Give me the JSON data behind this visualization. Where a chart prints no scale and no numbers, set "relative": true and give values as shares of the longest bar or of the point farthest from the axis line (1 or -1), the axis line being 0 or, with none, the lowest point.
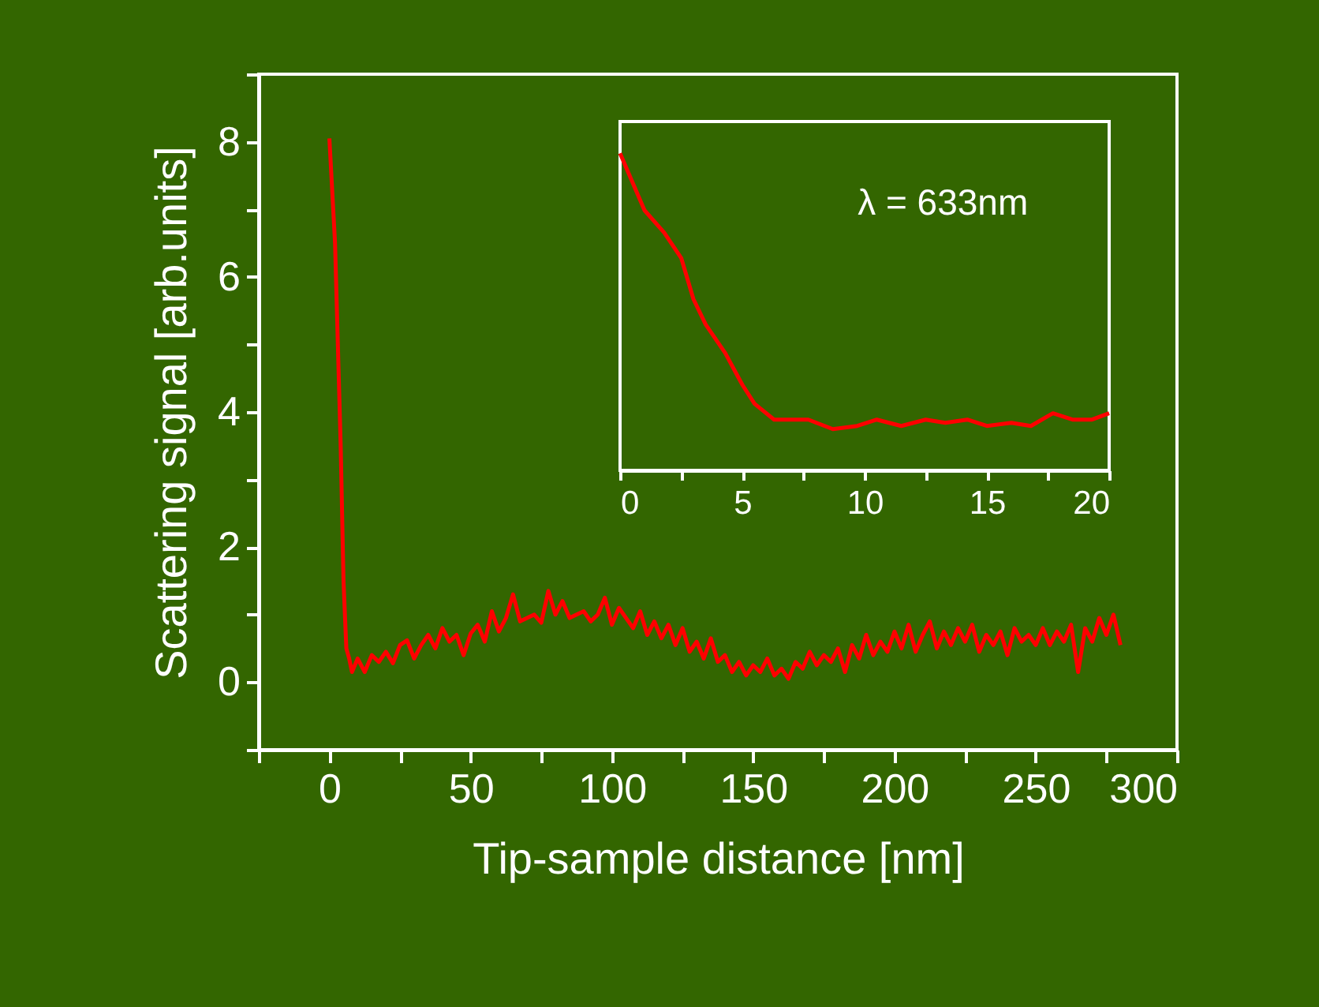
{
  "chart_data": [
    {
      "type": "line",
      "xlabel": "Tip-sample distance [nm]",
      "ylabel": "Scattering signal [arb.units]",
      "xlim": [
        -25,
        300
      ],
      "ylim": [
        -1,
        9
      ],
      "xticks": [
        {
          "value": -25,
          "label": null
        },
        0,
        {
          "value": 25,
          "label": null
        },
        50,
        {
          "value": 75,
          "label": null
        },
        100,
        {
          "value": 125,
          "label": null
        },
        150,
        {
          "value": 175,
          "label": null
        },
        200,
        {
          "value": 225,
          "label": null
        },
        250,
        {
          "value": 275,
          "label": null
        },
        300
      ],
      "yticks": [
        {
          "value": -1,
          "label": null
        },
        0,
        {
          "value": 1,
          "label": null
        },
        2,
        {
          "value": 3,
          "label": null
        },
        4,
        {
          "value": 5,
          "label": null
        },
        6,
        {
          "value": 7,
          "label": null
        },
        8,
        {
          "value": 9,
          "label": null
        }
      ],
      "series": [
        {
          "color": "#ff0000",
          "x": [
            0,
            2,
            4,
            5,
            6,
            7,
            8,
            10,
            12.5,
            15,
            17.5,
            20,
            22.5,
            25,
            27.5,
            30,
            32.5,
            35,
            37.5,
            40,
            42.5,
            45,
            47.5,
            50,
            52.5,
            55,
            57.5,
            60,
            62.5,
            65,
            67.5,
            70,
            72.5,
            75,
            77.5,
            80,
            82.5,
            85,
            87.5,
            90,
            92.5,
            95,
            97.5,
            100,
            102.5,
            105,
            107.5,
            110,
            112.5,
            115,
            117.5,
            120,
            122.5,
            125,
            127.5,
            130,
            132.5,
            135,
            137.5,
            140,
            142.5,
            145,
            147.5,
            150,
            152.5,
            155,
            157.5,
            160,
            162.5,
            165,
            167.5,
            170,
            172.5,
            175,
            177.5,
            180,
            182.5,
            185,
            187.5,
            190,
            192.5,
            195,
            197.5,
            200,
            202.5,
            205,
            207.5,
            210,
            212.5,
            215,
            217.5,
            220,
            222.5,
            225,
            227.5,
            230,
            232.5,
            235,
            237.5,
            240,
            242.5,
            245,
            247.5,
            250,
            252.5,
            255,
            257.5,
            260,
            262.5,
            265,
            267.5,
            270,
            272.5,
            275,
            277.5,
            280
          ],
          "values": [
            8.05,
            6.5,
            3.5,
            1.5,
            0.5,
            0.35,
            0.15,
            0.35,
            0.15,
            0.4,
            0.3,
            0.45,
            0.28,
            0.55,
            0.62,
            0.35,
            0.55,
            0.7,
            0.5,
            0.8,
            0.6,
            0.7,
            0.4,
            0.72,
            0.85,
            0.6,
            1.05,
            0.75,
            0.95,
            1.3,
            0.9,
            0.95,
            1.0,
            0.88,
            1.35,
            1.0,
            1.2,
            0.95,
            1.0,
            1.05,
            0.9,
            1.0,
            1.25,
            0.85,
            1.1,
            0.95,
            0.8,
            1.05,
            0.7,
            0.9,
            0.65,
            0.85,
            0.55,
            0.8,
            0.45,
            0.6,
            0.35,
            0.65,
            0.3,
            0.4,
            0.15,
            0.3,
            0.1,
            0.25,
            0.15,
            0.35,
            0.1,
            0.2,
            0.05,
            0.3,
            0.2,
            0.45,
            0.25,
            0.4,
            0.3,
            0.5,
            0.15,
            0.55,
            0.35,
            0.7,
            0.4,
            0.6,
            0.45,
            0.75,
            0.5,
            0.85,
            0.45,
            0.7,
            0.9,
            0.5,
            0.75,
            0.55,
            0.8,
            0.6,
            0.85,
            0.45,
            0.7,
            0.55,
            0.75,
            0.4,
            0.8,
            0.6,
            0.7,
            0.55,
            0.8,
            0.55,
            0.75,
            0.6,
            0.85,
            0.15,
            0.8,
            0.6,
            0.95,
            0.7,
            1.0,
            0.55
          ]
        }
      ]
    },
    {
      "type": "line",
      "relative": true,
      "xlim": [
        0,
        20
      ],
      "xticks": [
        0,
        {
          "value": 2.5,
          "label": null
        },
        5,
        {
          "value": 7.5,
          "label": null
        },
        10,
        {
          "value": 12.5,
          "label": null
        },
        15,
        {
          "value": 17.5,
          "label": null
        },
        20
      ],
      "annotations": [
        "λ = 633nm"
      ],
      "series": [
        {
          "color": "#ff0000",
          "x": [
            0,
            1,
            1.8,
            2.5,
            3,
            3.5,
            4.3,
            5,
            5.5,
            6.3,
            7.7,
            8.7,
            9.7,
            10.5,
            11.5,
            12.5,
            13.3,
            14.2,
            15,
            16,
            16.8,
            17.7,
            18.5,
            19.3,
            20
          ],
          "values": [
            1,
            0.82,
            0.75,
            0.67,
            0.54,
            0.46,
            0.37,
            0.27,
            0.21,
            0.16,
            0.16,
            0.13,
            0.14,
            0.16,
            0.14,
            0.16,
            0.15,
            0.16,
            0.14,
            0.15,
            0.14,
            0.18,
            0.16,
            0.16,
            0.18
          ]
        }
      ]
    }
  ]
}
